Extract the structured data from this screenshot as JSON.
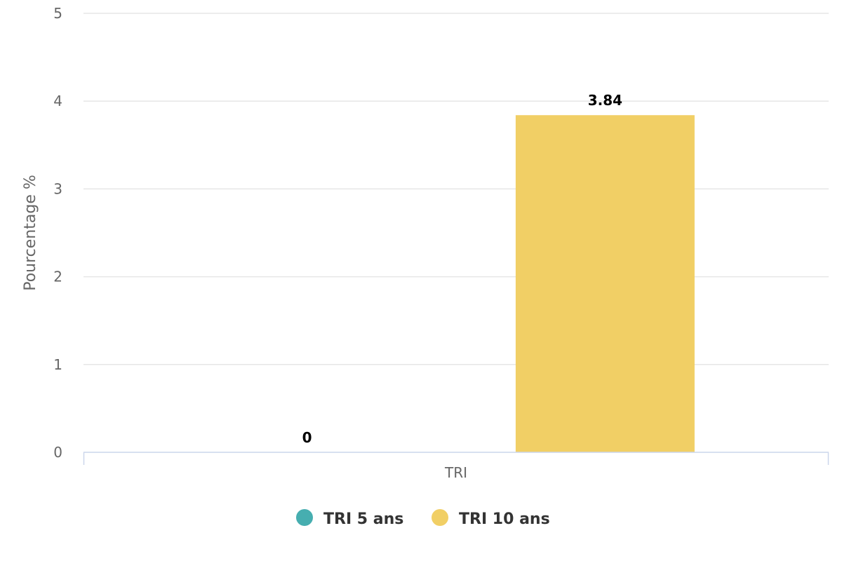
{
  "chart_data": {
    "type": "bar",
    "categories": [
      "TRI"
    ],
    "series": [
      {
        "name": "TRI 5 ans",
        "values": [
          0
        ],
        "color": "#46AEB0"
      },
      {
        "name": "TRI 10 ans",
        "values": [
          3.84
        ],
        "color": "#F1CF65"
      }
    ],
    "title": "",
    "xlabel": "",
    "ylabel": "Pourcentage %",
    "ylim": [
      0,
      5
    ],
    "yticks": [
      "0",
      "1",
      "2",
      "3",
      "4",
      "5"
    ],
    "data_labels": [
      "0",
      "3.84"
    ],
    "grid": true,
    "legend_position": "bottom"
  }
}
